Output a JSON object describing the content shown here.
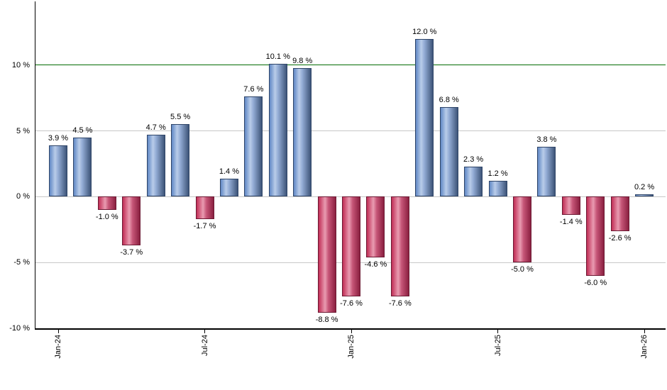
{
  "chart_data": {
    "type": "bar",
    "title": "",
    "description": "Monthly returns bar chart, Jan-24 through Jan-26",
    "categories": [
      "Jan-24",
      "Feb-24",
      "Mar-24",
      "Apr-24",
      "May-24",
      "Jun-24",
      "Jul-24",
      "Aug-24",
      "Sep-24",
      "Oct-24",
      "Nov-24",
      "Dec-24",
      "Jan-25",
      "Feb-25",
      "Mar-25",
      "Apr-25",
      "May-25",
      "Jun-25",
      "Jul-25",
      "Aug-25",
      "Sep-25",
      "Oct-25",
      "Nov-25",
      "Dec-25",
      "Jan-26"
    ],
    "values": [
      3.9,
      4.5,
      -1.0,
      -3.7,
      4.7,
      5.5,
      -1.7,
      1.4,
      7.6,
      10.1,
      9.8,
      -8.8,
      -7.6,
      -4.6,
      -7.6,
      12.0,
      6.8,
      2.3,
      1.2,
      -5.0,
      3.8,
      -1.4,
      -6.0,
      -2.6,
      0.2
    ],
    "label_suffix": " %",
    "xlabel": "",
    "ylabel": "",
    "ylim": [
      -10,
      14.85
    ],
    "grid": true,
    "legend": false,
    "y_axis": {
      "ticks": [
        {
          "label": "10 %",
          "value": 10
        },
        {
          "label": "5 %",
          "value": 5
        },
        {
          "label": "0 %",
          "value": 0
        },
        {
          "label": "-5 %",
          "value": -5
        },
        {
          "label": "-10 %",
          "value": -10
        }
      ],
      "gridline_values": [
        5,
        0,
        -5
      ]
    },
    "x_axis": {
      "ticks": [
        {
          "label": "Jan-24",
          "index": 0
        },
        {
          "label": "Jul-24",
          "index": 6
        },
        {
          "label": "Jan-25",
          "index": 12
        },
        {
          "label": "Jul-25",
          "index": 18
        },
        {
          "label": "Jan-26",
          "index": 24
        }
      ]
    },
    "threshold_line": {
      "value": 10,
      "color": "#056c05"
    },
    "style": {
      "background": "#ffffff",
      "text_color": "#000000",
      "gridline_color": "#c8c8c8",
      "axis_color": "#000000",
      "positive_bar": {
        "border": "#2f4568",
        "gradient": [
          "#6088c5",
          "#b9cce9",
          "#93acd5",
          "#3d5478"
        ]
      },
      "negative_bar": {
        "border": "#6d1a34",
        "gradient": [
          "#c02d55",
          "#e99bb1",
          "#c65577",
          "#8a2040"
        ]
      }
    }
  }
}
